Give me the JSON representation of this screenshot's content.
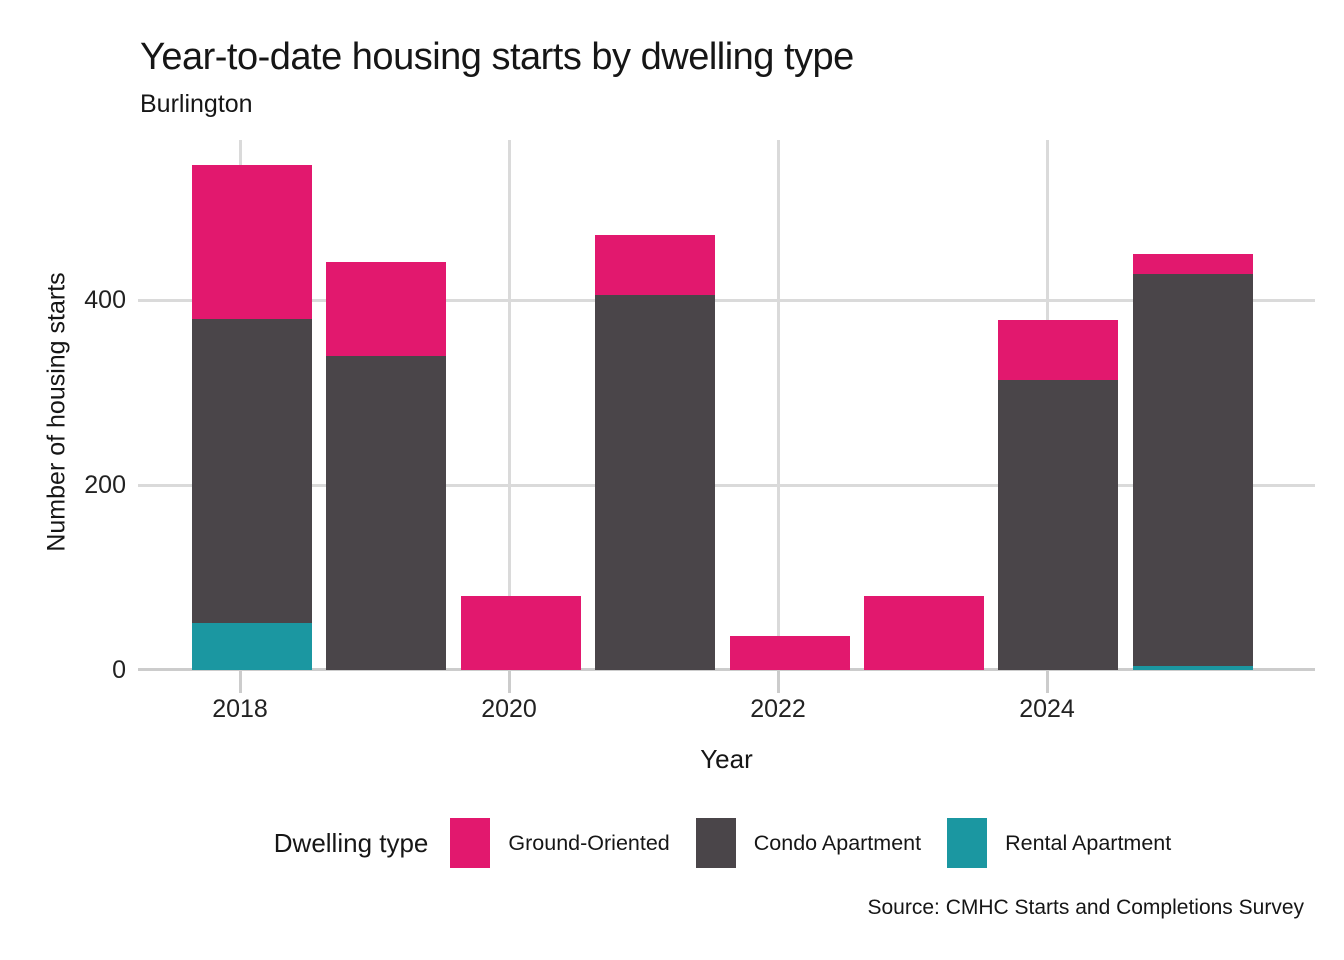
{
  "chart_data": {
    "type": "bar",
    "stacked": true,
    "title": "Year-to-date housing starts by dwelling type",
    "subtitle": "Burlington",
    "xlabel": "Year",
    "ylabel": "Number of housing starts",
    "legend_title": "Dwelling type",
    "source": "Source: CMHC Starts and Completions Survey",
    "categories": [
      "2018",
      "2019",
      "2020",
      "2021",
      "2022",
      "2023",
      "2024",
      "2025"
    ],
    "x_tick_labels": [
      "2018",
      "2020",
      "2022",
      "2024"
    ],
    "yticks": [
      0,
      200,
      400
    ],
    "ylim": [
      0,
      573
    ],
    "grid": "major",
    "legend_position": "bottom",
    "series": [
      {
        "name": "Ground-Oriented",
        "color": "#e2186e",
        "values": [
          167,
          101,
          80,
          65,
          37,
          80,
          64,
          22
        ]
      },
      {
        "name": "Condo Apartment",
        "color": "#4a4549",
        "values": [
          328,
          340,
          0,
          405,
          0,
          0,
          314,
          424
        ]
      },
      {
        "name": "Rental Apartment",
        "color": "#1b97a1",
        "values": [
          51,
          0,
          0,
          0,
          0,
          0,
          0,
          4
        ]
      }
    ],
    "stack_order_bottom_to_top": [
      "Rental Apartment",
      "Condo Apartment",
      "Ground-Oriented"
    ],
    "totals": [
      546,
      441,
      80,
      470,
      37,
      80,
      378,
      450
    ]
  }
}
